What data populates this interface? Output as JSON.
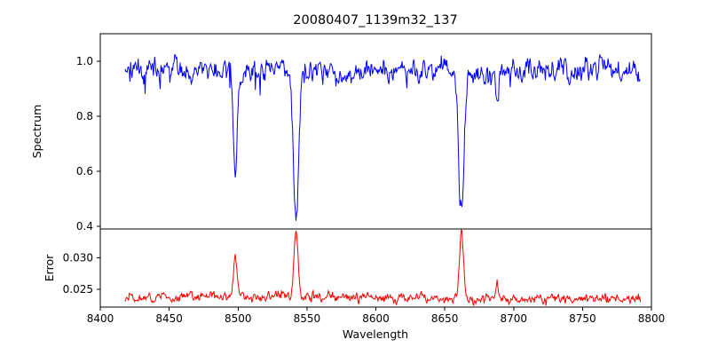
{
  "figure": {
    "background": "#ffffff",
    "axes_color": "#000000",
    "text_color": "#000000"
  },
  "chart_data": {
    "type": "line",
    "title": "20080407_1139m32_137",
    "xlabel": "Wavelength",
    "grid": false,
    "legend": false,
    "xlim": [
      8400,
      8800
    ],
    "x_ticks": [
      8400,
      8450,
      8500,
      8550,
      8600,
      8650,
      8700,
      8750,
      8800
    ],
    "x_range": [
      8418,
      8792
    ],
    "x_step": 0.5,
    "panels": [
      {
        "name": "spectrum",
        "ylabel": "Spectrum",
        "ylim": [
          0.39,
          1.1
        ],
        "y_ticks": [
          0.4,
          0.6,
          0.8,
          1.0
        ],
        "y_tick_labels": [
          "0.4",
          "0.6",
          "0.8",
          "1.0"
        ],
        "line_color": "#0000ff",
        "continuum_level": 0.965,
        "noise_sigma": 0.018,
        "absorption_lines": [
          {
            "center": 8498.0,
            "min_flux": 0.6,
            "fwhm": 3.5
          },
          {
            "center": 8542.1,
            "min_flux": 0.43,
            "fwhm": 4.5
          },
          {
            "center": 8662.1,
            "min_flux": 0.46,
            "fwhm": 4.5
          },
          {
            "center": 8688.0,
            "min_flux": 0.87,
            "fwhm": 2.5
          }
        ]
      },
      {
        "name": "error",
        "ylabel": "Error",
        "ylim": [
          0.0222,
          0.0346
        ],
        "y_ticks": [
          0.025,
          0.03
        ],
        "y_tick_labels": [
          "0.025",
          "0.030"
        ],
        "line_color": "#ff0000",
        "baseline_level": 0.0237,
        "noise_sigma": 0.00035,
        "peaks": [
          {
            "center": 8498.0,
            "max_error": 0.0302,
            "fwhm": 3.0
          },
          {
            "center": 8542.1,
            "max_error": 0.034,
            "fwhm": 3.5
          },
          {
            "center": 8662.1,
            "max_error": 0.034,
            "fwhm": 3.5
          },
          {
            "center": 8688.0,
            "max_error": 0.0266,
            "fwhm": 2.0
          }
        ]
      }
    ]
  }
}
